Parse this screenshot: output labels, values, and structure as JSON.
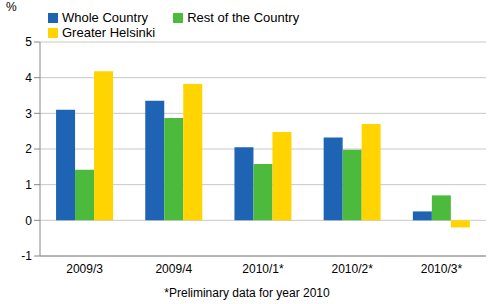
{
  "chart_data": {
    "type": "bar",
    "ylabel": "%",
    "annotation": "*Preliminary data for year 2010",
    "categories": [
      "2009/3",
      "2009/4",
      "2010/1*",
      "2010/2*",
      "2010/3*"
    ],
    "series": [
      {
        "name": "Whole Country",
        "color": "#1f63b5",
        "values": [
          3.1,
          3.35,
          2.05,
          2.32,
          0.25
        ]
      },
      {
        "name": "Rest of the Country",
        "color": "#4cba3c",
        "values": [
          1.42,
          2.87,
          1.58,
          1.98,
          0.7
        ]
      },
      {
        "name": "Greater Helsinki",
        "color": "#ffd400",
        "values": [
          4.18,
          3.82,
          2.48,
          2.7,
          -0.2
        ]
      }
    ],
    "ylim": [
      -1,
      5
    ],
    "yticks": [
      -1,
      0,
      1,
      2,
      3,
      4,
      5
    ],
    "grid": true,
    "legend": "upper left"
  }
}
